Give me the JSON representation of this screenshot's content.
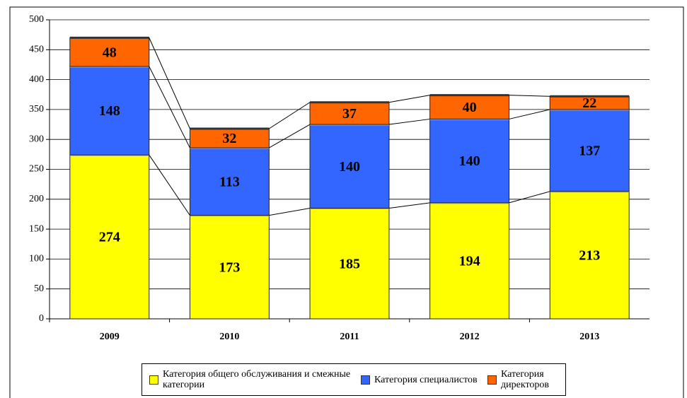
{
  "chart_data": {
    "type": "stacked_bar",
    "categories": [
      "2009",
      "2010",
      "2011",
      "2012",
      "2013"
    ],
    "series": [
      {
        "name": "Категория общего обслуживания и смежные категории",
        "color": "#ffff00",
        "values": [
          274,
          173,
          185,
          194,
          213
        ]
      },
      {
        "name": "Категория специалистов",
        "color": "#3366ff",
        "values": [
          148,
          113,
          140,
          140,
          137
        ]
      },
      {
        "name": "Категория директоров",
        "color": "#ff6600",
        "values": [
          48,
          32,
          37,
          40,
          22
        ]
      }
    ],
    "ylim": [
      0,
      500
    ],
    "yticks": [
      0,
      50,
      100,
      150,
      200,
      250,
      300,
      350,
      400,
      450,
      500
    ],
    "grid": true,
    "legend": "bottom"
  }
}
